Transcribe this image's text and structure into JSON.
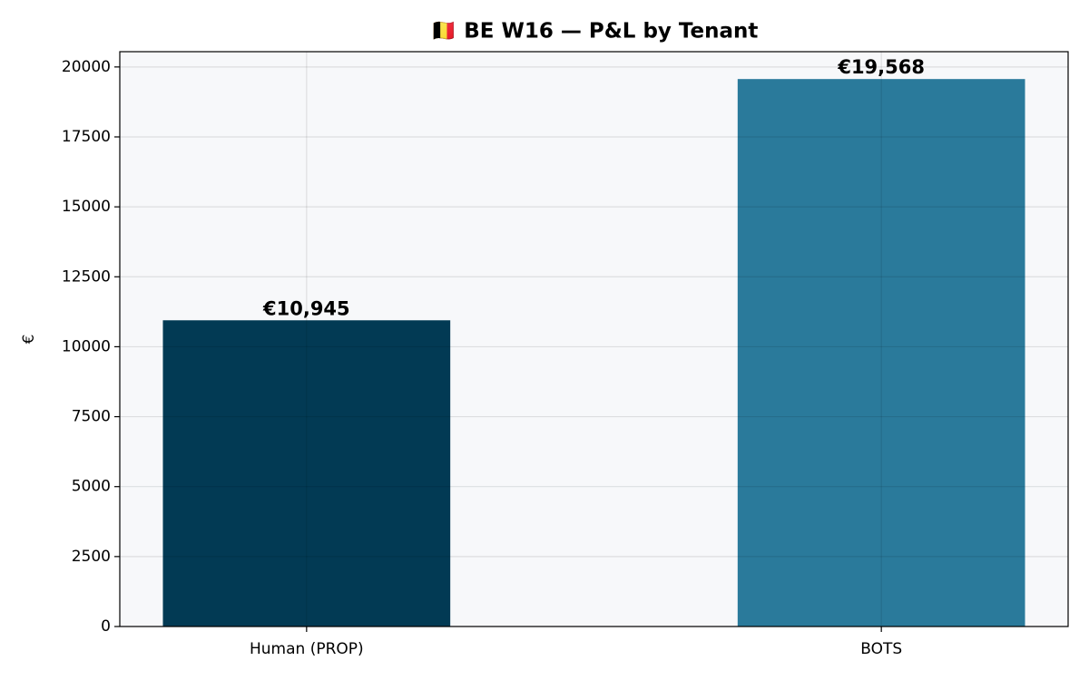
{
  "chart_data": {
    "type": "bar",
    "title": "🇧🇪 BE W16 — P&L by Tenant",
    "y_label": "€",
    "categories": [
      "Human (PROP)",
      "BOTS"
    ],
    "series": [
      {
        "name": "P&L",
        "values": [
          10945,
          19568
        ],
        "value_labels": [
          "€10,945",
          "€19,568"
        ],
        "colors": [
          "#023a54",
          "#2a7a9b"
        ]
      }
    ],
    "ylim": [
      0,
      20546
    ],
    "yticks": [
      0,
      2500,
      5000,
      7500,
      10000,
      12500,
      15000,
      17500,
      20000
    ],
    "grid": true
  }
}
